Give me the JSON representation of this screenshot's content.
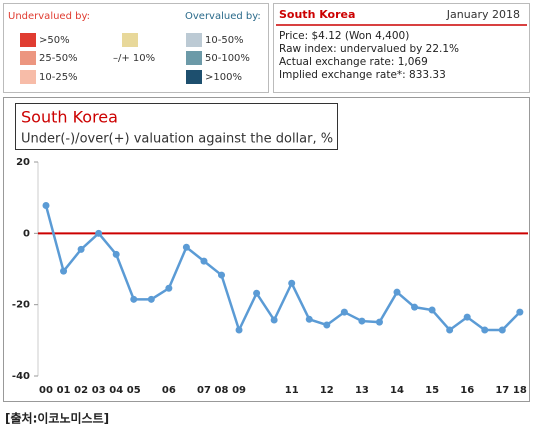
{
  "legend": {
    "undervalued_title": "Undervalued by:",
    "overvalued_title": "Overvalued by:",
    "items": [
      {
        "label": ">50%",
        "color": "#e03c31"
      },
      {
        "label": "25-50%",
        "color": "#ec9680"
      },
      {
        "label": "10-25%",
        "color": "#f7bca8"
      },
      {
        "label": "–/+ 10%",
        "color": "#e8d89a"
      },
      {
        "label": "10-50%",
        "color": "#bccad4"
      },
      {
        "label": "50-100%",
        "color": "#6c9aa8"
      },
      {
        "label": ">100%",
        "color": "#1d4f6e"
      }
    ]
  },
  "info": {
    "country": "South Korea",
    "date": "January 2018",
    "lines": [
      "Price: $4.12 (Won 4,400)",
      "Raw index: undervalued by 22.1%",
      "Actual exchange rate: 1,069",
      "Implied exchange rate*: 833.33"
    ]
  },
  "chart_data": {
    "type": "line",
    "title": "South Korea",
    "subtitle": "Under(-)/over(+) valuation against the dollar, %",
    "categories": [
      "00",
      "01",
      "02",
      "03",
      "04",
      "05",
      null,
      "06",
      null,
      "07",
      "08",
      "09",
      null,
      null,
      "11",
      null,
      "12",
      null,
      "13",
      null,
      "14",
      null,
      "15",
      null,
      "16",
      null,
      "17",
      "18"
    ],
    "series": [
      {
        "name": "South Korea",
        "color": "#5b9bd5",
        "values": [
          7.8,
          -10.6,
          -4.5,
          0,
          -5.9,
          -18.5,
          -18.5,
          -15.4,
          -3.9,
          -7.8,
          -11.7,
          -27.1,
          -16.8,
          -24.3,
          -14,
          -24.1,
          -25.7,
          -22.1,
          -24.6,
          -24.9,
          -16.5,
          -20.7,
          -21.5,
          -27.1,
          -23.5,
          -27.1,
          -27.1,
          -22.1
        ]
      }
    ],
    "ylim": [
      -40,
      20
    ],
    "yticks": [
      20,
      0,
      -20,
      -40
    ],
    "zero_line_color": "#cc0000"
  },
  "source": "[출처:이코노미스트]"
}
